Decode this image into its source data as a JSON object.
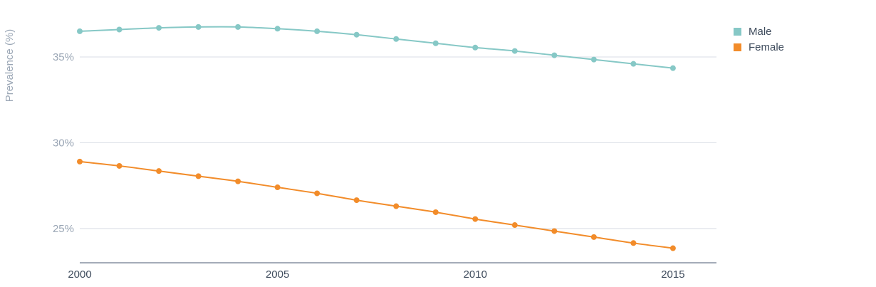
{
  "chart_data": {
    "type": "line",
    "title": "",
    "xlabel": "",
    "ylabel": "Prevalence (%)",
    "x": [
      2000,
      2001,
      2002,
      2003,
      2004,
      2005,
      2006,
      2007,
      2008,
      2009,
      2010,
      2011,
      2012,
      2013,
      2014,
      2015
    ],
    "x_ticks": [
      "2000",
      "2005",
      "2010",
      "2015"
    ],
    "y_ticks": [
      "25%",
      "30%",
      "35%"
    ],
    "ylim": [
      23,
      37.7
    ],
    "xlim": [
      2000,
      2016.1
    ],
    "grid": true,
    "legend_position": "top-right",
    "series": [
      {
        "name": "Male",
        "color": "#86c8c6",
        "values": [
          36.5,
          36.6,
          36.7,
          36.75,
          36.75,
          36.65,
          36.5,
          36.3,
          36.05,
          35.8,
          35.55,
          35.35,
          35.1,
          34.85,
          34.6,
          34.35
        ]
      },
      {
        "name": "Female",
        "color": "#f28c2a",
        "values": [
          28.9,
          28.65,
          28.35,
          28.05,
          27.75,
          27.4,
          27.05,
          26.65,
          26.3,
          25.95,
          25.55,
          25.2,
          24.85,
          24.5,
          24.15,
          23.85
        ]
      }
    ]
  }
}
